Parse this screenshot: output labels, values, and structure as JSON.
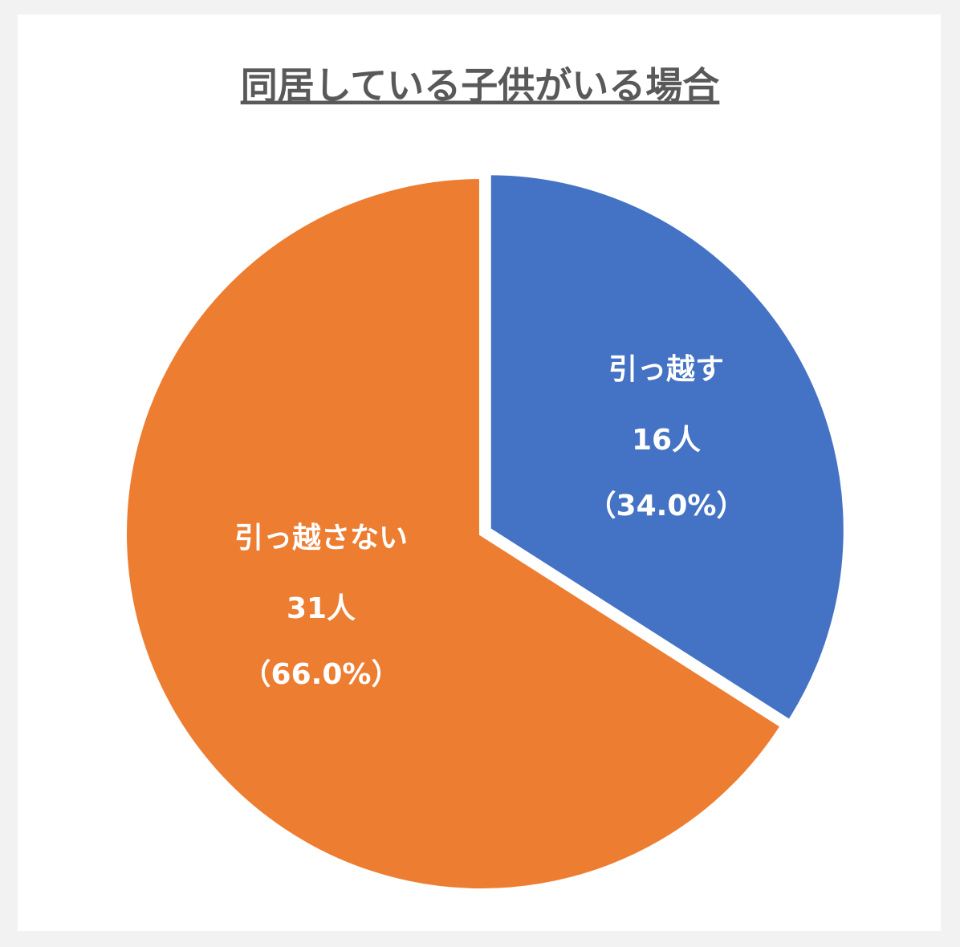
{
  "chart_data": {
    "type": "pie",
    "title": "同居している子供がいる場合",
    "categories": [
      "引っ越す",
      "引っ越さない"
    ],
    "values": [
      16,
      31
    ],
    "value_labels": [
      "16人",
      "31人"
    ],
    "percent_labels": [
      "（34.0%）",
      "（66.0%）"
    ],
    "colors": [
      "#4472c4",
      "#ed7d31"
    ]
  }
}
